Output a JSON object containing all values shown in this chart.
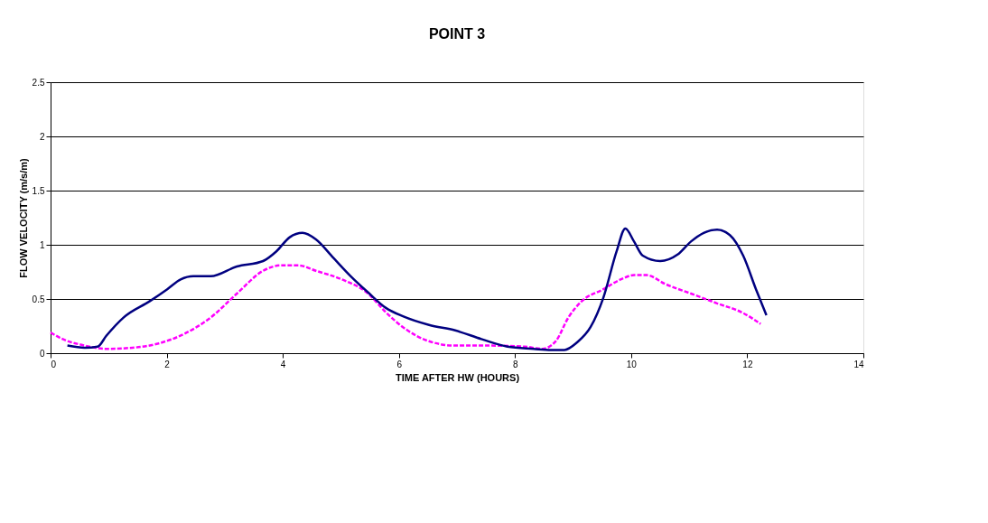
{
  "chart_data": {
    "type": "line",
    "title": "POINT 3",
    "xlabel": "TIME AFTER HW (HOURS)",
    "ylabel": "FLOW VELOCITY (m/s/m)",
    "xlim": [
      0,
      14
    ],
    "xticks": [
      0,
      2,
      4,
      6,
      8,
      10,
      12,
      14
    ],
    "ylim": [
      0,
      2.5
    ],
    "yticks": [
      0,
      0.5,
      1,
      1.5,
      2,
      2.5
    ],
    "grid": "y",
    "marker": "none",
    "series": [
      {
        "color": "#ff00ff",
        "line_style": "dashed",
        "x": [
          0,
          0.21,
          0.59,
          0.96,
          1.41,
          1.86,
          2.31,
          2.76,
          3.21,
          3.66,
          3.97,
          4.27,
          4.57,
          5.02,
          5.47,
          5.77,
          6.07,
          6.52,
          6.97,
          7.57,
          8.17,
          8.47,
          8.7,
          8.92,
          9.15,
          9.52,
          9.82,
          10.05,
          10.27,
          10.58,
          11.03,
          11.48,
          11.93,
          12.23
        ],
        "values": [
          0.19,
          0.13,
          0.07,
          0.04,
          0.05,
          0.09,
          0.18,
          0.33,
          0.55,
          0.76,
          0.81,
          0.81,
          0.76,
          0.68,
          0.55,
          0.38,
          0.24,
          0.11,
          0.07,
          0.07,
          0.06,
          0.04,
          0.11,
          0.33,
          0.48,
          0.59,
          0.68,
          0.72,
          0.72,
          0.64,
          0.55,
          0.46,
          0.37,
          0.27
        ]
      },
      {
        "color": "#000080",
        "line_style": "solid",
        "x": [
          0.29,
          0.59,
          0.81,
          0.96,
          1.26,
          1.71,
          2.01,
          2.24,
          2.46,
          2.76,
          3.21,
          3.66,
          3.89,
          4.12,
          4.34,
          4.57,
          4.87,
          5.17,
          5.47,
          5.77,
          6.07,
          6.52,
          6.97,
          7.42,
          7.87,
          8.32,
          8.62,
          8.85,
          9.07,
          9.3,
          9.52,
          9.75,
          9.9,
          10.05,
          10.2,
          10.5,
          10.8,
          11.03,
          11.25,
          11.48,
          11.7,
          11.93,
          12.15,
          12.33
        ],
        "values": [
          0.07,
          0.05,
          0.06,
          0.16,
          0.33,
          0.48,
          0.59,
          0.68,
          0.71,
          0.71,
          0.8,
          0.85,
          0.94,
          1.07,
          1.11,
          1.05,
          0.88,
          0.71,
          0.56,
          0.42,
          0.34,
          0.26,
          0.21,
          0.13,
          0.06,
          0.04,
          0.03,
          0.03,
          0.1,
          0.24,
          0.51,
          0.94,
          1.15,
          1.03,
          0.9,
          0.85,
          0.91,
          1.03,
          1.11,
          1.14,
          1.09,
          0.9,
          0.59,
          0.35
        ]
      }
    ]
  }
}
